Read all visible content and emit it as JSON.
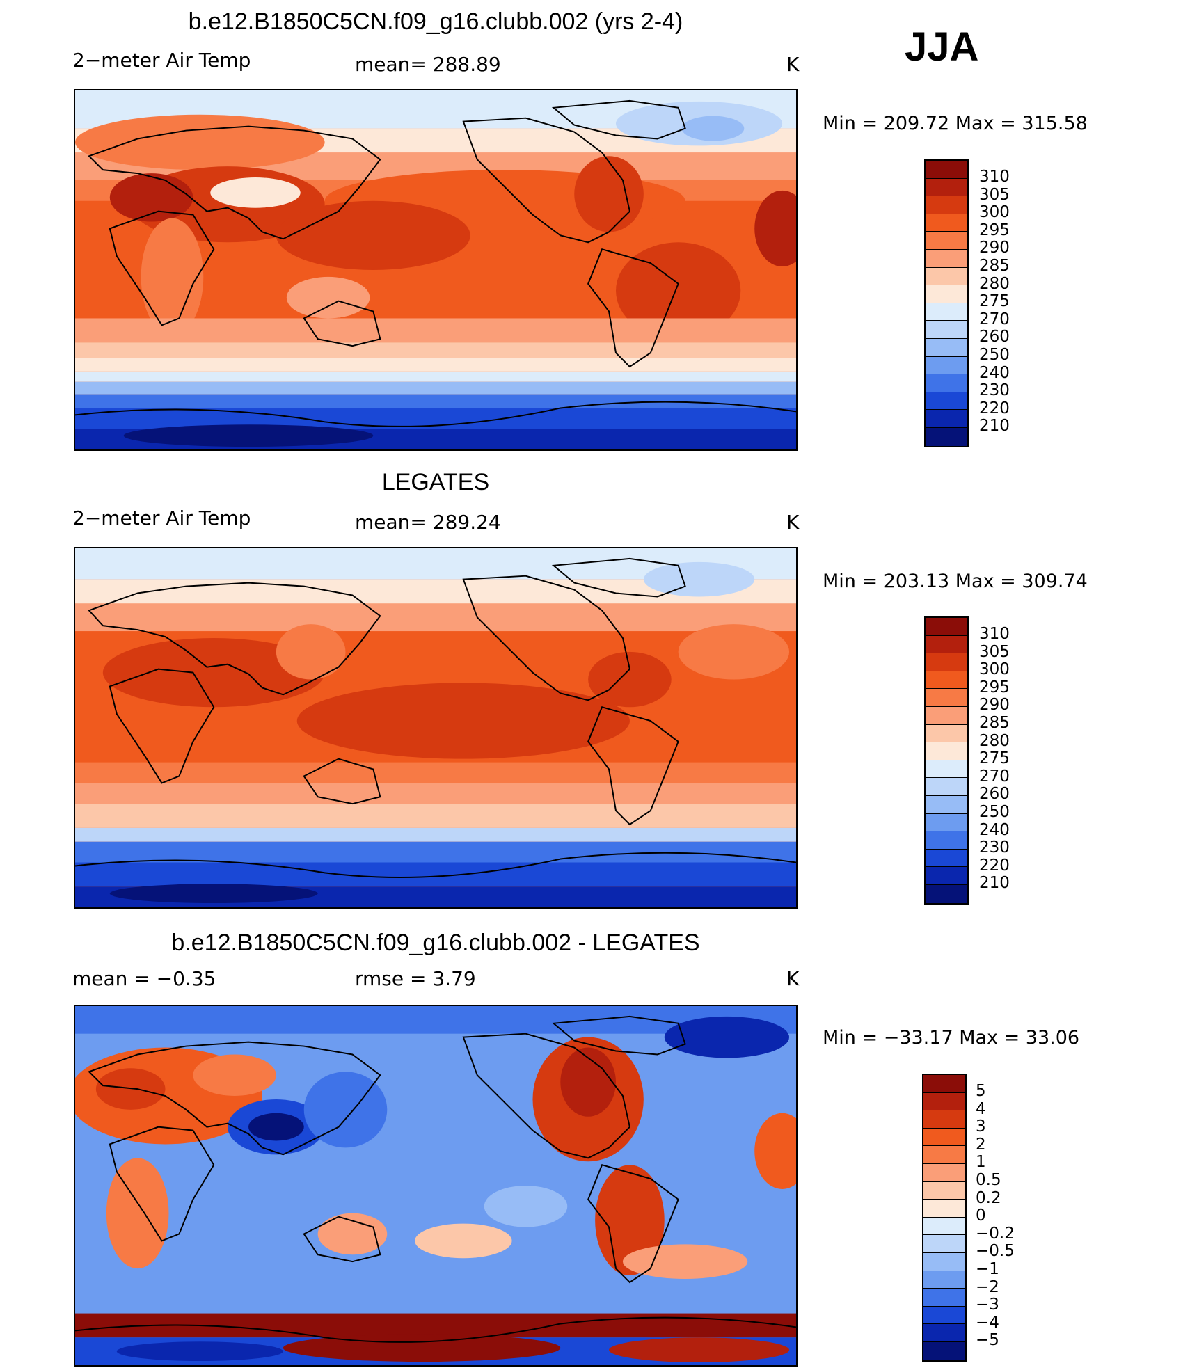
{
  "season": "JJA",
  "panels": [
    {
      "title": "b.e12.B1850C5CN.f09_g16.clubb.002 (yrs 2-4)",
      "left_label": "2−meter Air Temp",
      "center_label": "mean=  288.89",
      "units": "K",
      "minmax": "Min  =  209.72  Max  =  315.58"
    },
    {
      "title": "LEGATES",
      "left_label": "2−meter Air Temp",
      "center_label": "mean=  289.24",
      "units": "K",
      "minmax": "Min  =  203.13  Max  =  309.74"
    },
    {
      "title": "b.e12.B1850C5CN.f09_g16.clubb.002 - LEGATES",
      "left_label": "mean  =    −0.35",
      "center_label": "rmse  =     3.79",
      "units": "K",
      "minmax": "Min  =  −33.17  Max  =    33.06"
    }
  ],
  "colorbars": {
    "temperature": {
      "labels": [
        "310",
        "305",
        "300",
        "295",
        "290",
        "285",
        "280",
        "275",
        "270",
        "260",
        "250",
        "240",
        "230",
        "220",
        "210"
      ],
      "colors": [
        "#8b0d08",
        "#b3200d",
        "#d63a10",
        "#f05a1e",
        "#f77a45",
        "#fa9e78",
        "#fcc7a9",
        "#fde8d8",
        "#dcecfb",
        "#bdd6f9",
        "#97bcf6",
        "#6d9cf0",
        "#3f73e8",
        "#1a48d6",
        "#0a26ae",
        "#051278"
      ]
    },
    "difference": {
      "labels": [
        "5",
        "4",
        "3",
        "2",
        "1",
        "0.5",
        "0.2",
        "0",
        "−0.2",
        "−0.5",
        "−1",
        "−2",
        "−3",
        "−4",
        "−5"
      ],
      "colors": [
        "#8b0d08",
        "#b3200d",
        "#d63a10",
        "#f05a1e",
        "#f77a45",
        "#fa9e78",
        "#fcc7a9",
        "#fde8d8",
        "#dcecfb",
        "#bdd6f9",
        "#97bcf6",
        "#6d9cf0",
        "#3f73e8",
        "#1a48d6",
        "#0a26ae",
        "#051278"
      ]
    }
  }
}
